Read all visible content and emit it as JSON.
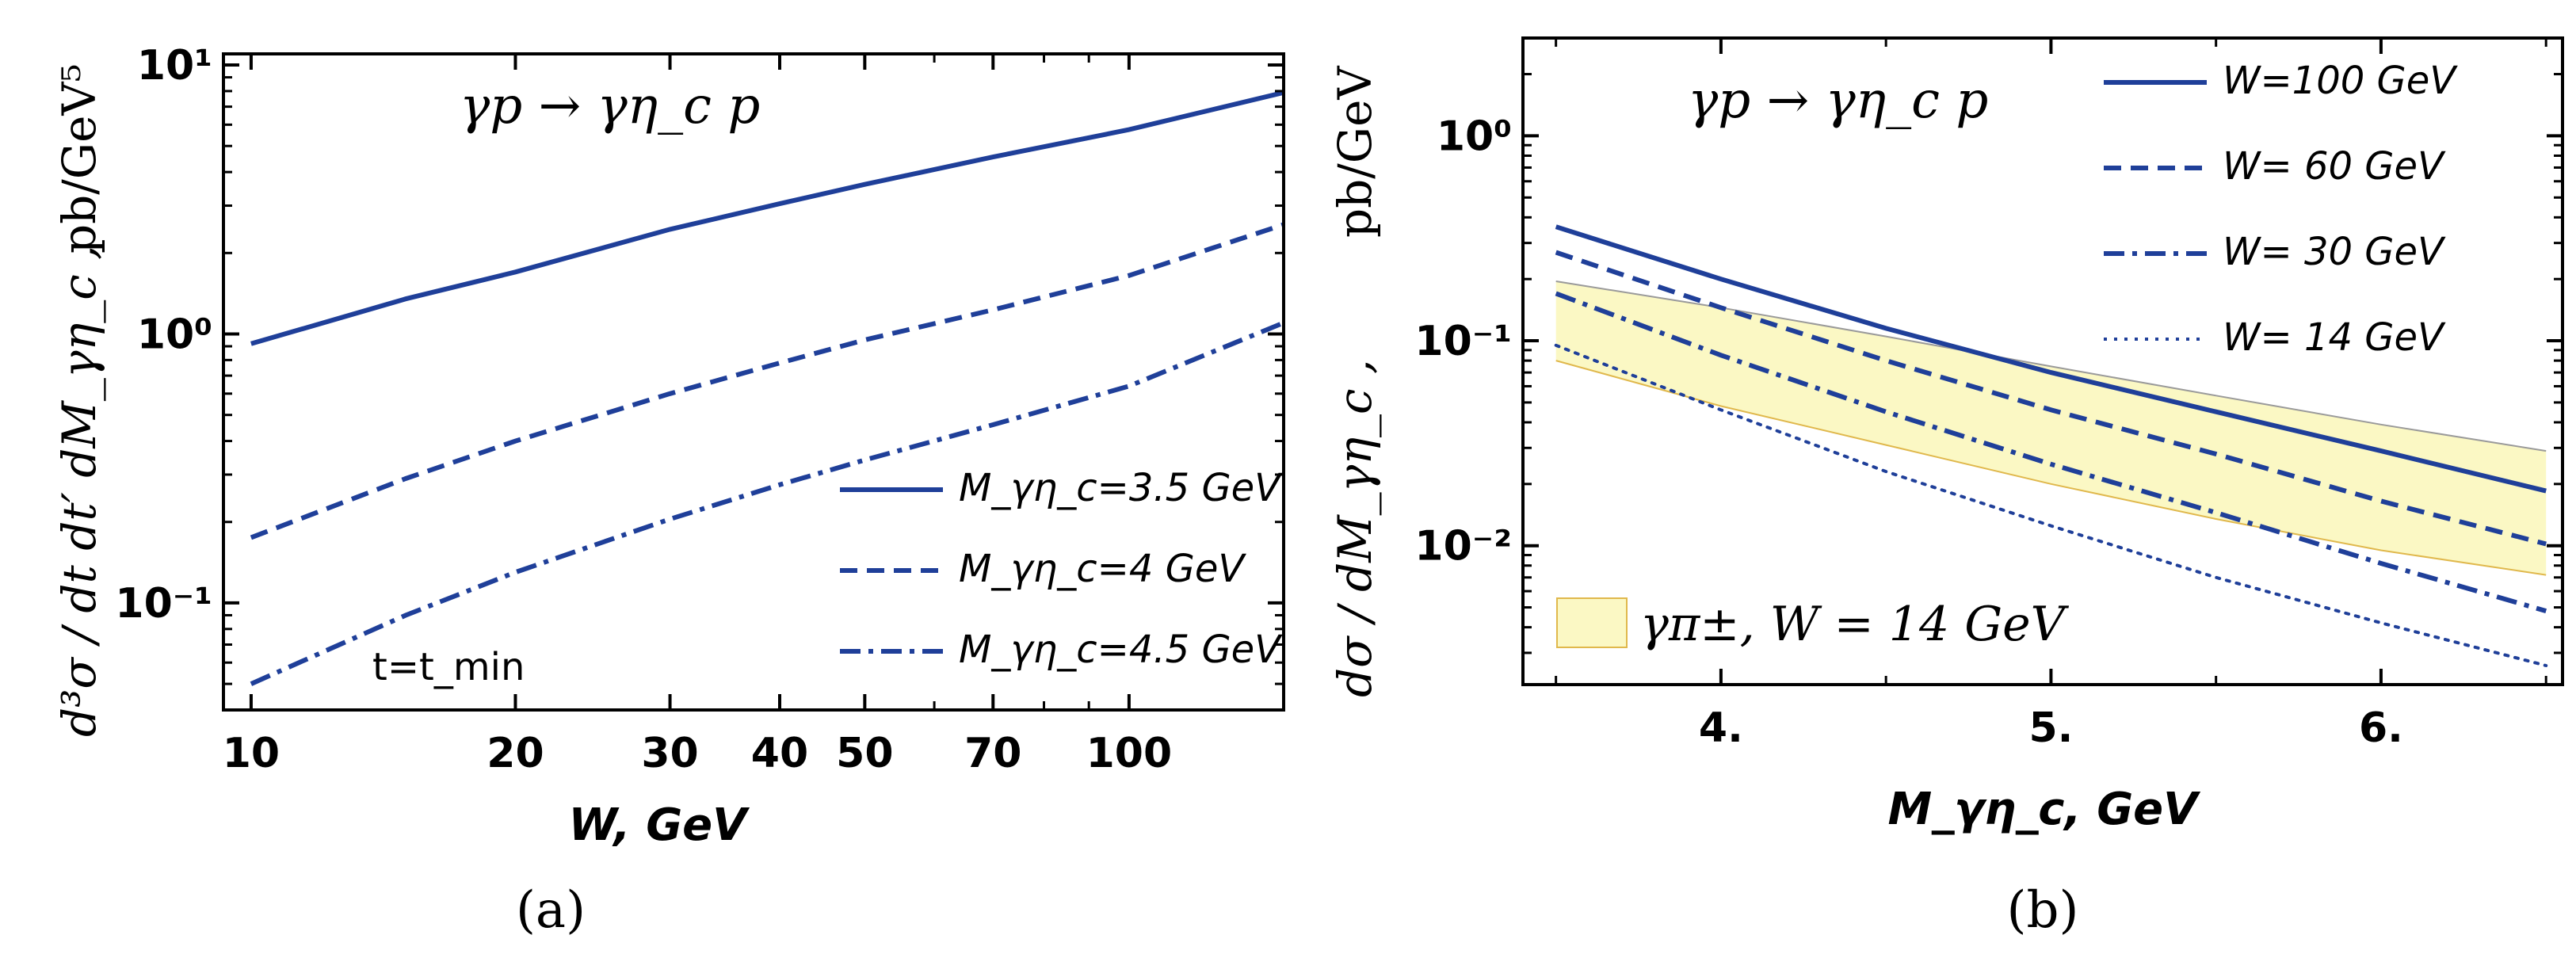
{
  "chart_data": [
    {
      "type": "line",
      "panel_label": "(a)",
      "process_label": "γp → γη_c p",
      "xlabel": "W, GeV",
      "ylabel": "d³σ / dt dt′ dM_γη_c ,",
      "ylabel_units": "pb/GeV⁵",
      "xscale": "log",
      "yscale": "log",
      "xlim": [
        9.3,
        150
      ],
      "ylim": [
        0.04,
        11
      ],
      "xticks": [
        10,
        20,
        30,
        40,
        50,
        70,
        100
      ],
      "xtick_labels": [
        "10",
        "20",
        "30",
        "40",
        "50",
        "70",
        "100"
      ],
      "yticks": [
        0.1,
        1,
        10
      ],
      "ytick_labels": [
        "10⁻¹",
        "10⁰",
        "10¹"
      ],
      "annotation": "t=t_min",
      "legend_position": "lower-right",
      "series": [
        {
          "name": "M_γη_c=3.5 GeV",
          "style": "solid",
          "x": [
            10,
            15,
            20,
            30,
            40,
            50,
            70,
            100,
            150
          ],
          "y": [
            0.92,
            1.35,
            1.7,
            2.45,
            3.05,
            3.6,
            4.55,
            5.75,
            7.9
          ]
        },
        {
          "name": "M_γη_c=4 GeV",
          "style": "dashed",
          "x": [
            10,
            15,
            20,
            30,
            40,
            50,
            70,
            100,
            150
          ],
          "y": [
            0.175,
            0.29,
            0.4,
            0.6,
            0.78,
            0.95,
            1.23,
            1.65,
            2.55
          ]
        },
        {
          "name": "M_γη_c=4.5 GeV",
          "style": "dashdot",
          "x": [
            10,
            15,
            20,
            30,
            40,
            50,
            70,
            100,
            150
          ],
          "y": [
            0.05,
            0.09,
            0.13,
            0.205,
            0.275,
            0.34,
            0.46,
            0.64,
            1.1
          ]
        }
      ]
    },
    {
      "type": "line",
      "panel_label": "(b)",
      "process_label": "γp → γη_c p",
      "xlabel": "M_γη_c, GeV",
      "ylabel": "dσ / dM_γη_c ,",
      "ylabel_units": "pb/GeV",
      "xscale": "linear",
      "yscale": "log",
      "xlim": [
        3.4,
        6.55
      ],
      "ylim": [
        0.0021,
        3.0
      ],
      "xticks": [
        4,
        5,
        6
      ],
      "xtick_labels": [
        "4.",
        "5.",
        "6."
      ],
      "yticks": [
        0.01,
        0.1,
        1
      ],
      "ytick_labels": [
        "10⁻²",
        "10⁻¹",
        "10⁰"
      ],
      "legend_position": "top-right",
      "band": {
        "name": "γπ±, W = 14 GeV",
        "x": [
          3.5,
          4.0,
          4.5,
          5.0,
          5.5,
          6.0,
          6.5
        ],
        "upper": [
          0.195,
          0.145,
          0.105,
          0.075,
          0.054,
          0.039,
          0.029
        ],
        "lower": [
          0.08,
          0.048,
          0.031,
          0.02,
          0.0135,
          0.0095,
          0.0072
        ]
      },
      "series": [
        {
          "name": "W=100 GeV",
          "style": "solid",
          "x": [
            3.5,
            4.0,
            4.5,
            5.0,
            5.5,
            6.0,
            6.5
          ],
          "y": [
            0.36,
            0.2,
            0.115,
            0.07,
            0.045,
            0.029,
            0.0185
          ]
        },
        {
          "name": "W= 60 GeV",
          "style": "dashed",
          "x": [
            3.5,
            4.0,
            4.5,
            5.0,
            5.5,
            6.0,
            6.5
          ],
          "y": [
            0.27,
            0.145,
            0.08,
            0.046,
            0.028,
            0.0165,
            0.0102
          ]
        },
        {
          "name": "W= 30 GeV",
          "style": "dashdot",
          "x": [
            3.5,
            4.0,
            4.5,
            5.0,
            5.5,
            6.0,
            6.5
          ],
          "y": [
            0.17,
            0.085,
            0.045,
            0.025,
            0.0145,
            0.0082,
            0.0048
          ]
        },
        {
          "name": "W= 14 GeV",
          "style": "dotted",
          "x": [
            3.5,
            4.0,
            4.5,
            5.0,
            5.5,
            6.0,
            6.5
          ],
          "y": [
            0.095,
            0.046,
            0.023,
            0.0125,
            0.007,
            0.0042,
            0.0026
          ]
        }
      ]
    }
  ],
  "colors": {
    "line": "#1f3f99",
    "line_teal": "#1f5a6e",
    "band_fill": "#fbf8c4",
    "band_edge_upper": "#9a9a9a",
    "band_edge_lower": "#e0b84c"
  }
}
